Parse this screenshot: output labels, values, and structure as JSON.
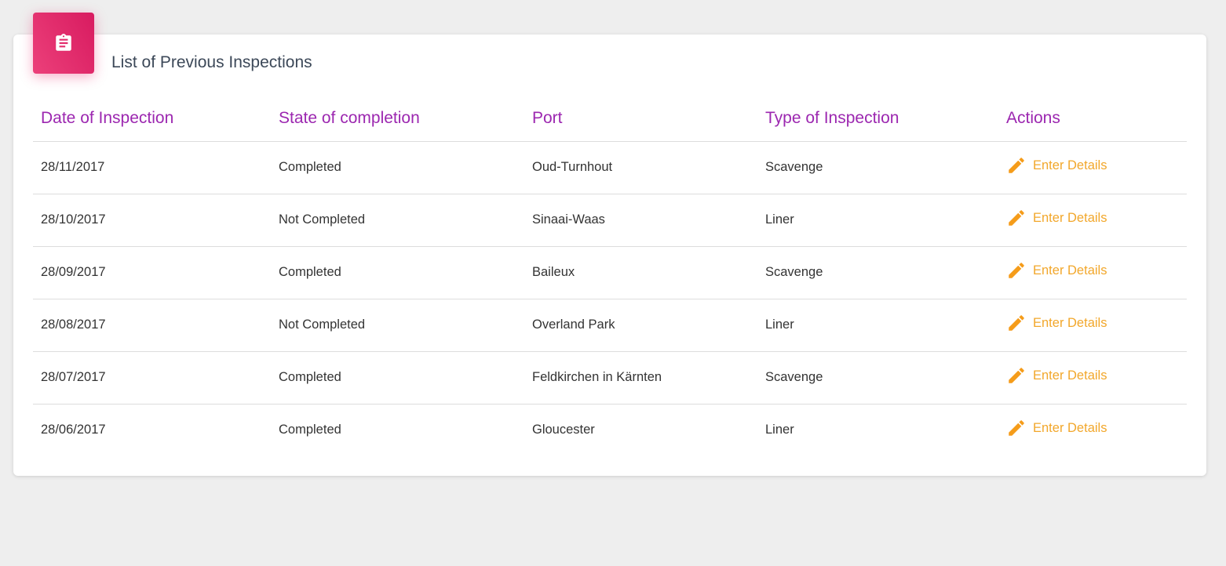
{
  "card": {
    "title": "List of Previous Inspections",
    "icon": "clipboard-icon",
    "accent": "#e91e63"
  },
  "table": {
    "headers": [
      "Date of Inspection",
      "State of completion",
      "Port",
      "Type of Inspection",
      "Actions"
    ],
    "rows": [
      {
        "date": "28/11/2017",
        "state": "Completed",
        "port": "Oud-Turnhout",
        "type": "Scavenge",
        "action": "Enter Details"
      },
      {
        "date": "28/10/2017",
        "state": "Not Completed",
        "port": "Sinaai-Waas",
        "type": "Liner",
        "action": "Enter Details"
      },
      {
        "date": "28/09/2017",
        "state": "Completed",
        "port": "Baileux",
        "type": "Scavenge",
        "action": "Enter Details"
      },
      {
        "date": "28/08/2017",
        "state": "Not Completed",
        "port": "Overland Park",
        "type": "Liner",
        "action": "Enter Details"
      },
      {
        "date": "28/07/2017",
        "state": "Completed",
        "port": "Feldkirchen in Kärnten",
        "type": "Scavenge",
        "action": "Enter Details"
      },
      {
        "date": "28/06/2017",
        "state": "Completed",
        "port": "Gloucester",
        "type": "Liner",
        "action": "Enter Details"
      }
    ]
  }
}
